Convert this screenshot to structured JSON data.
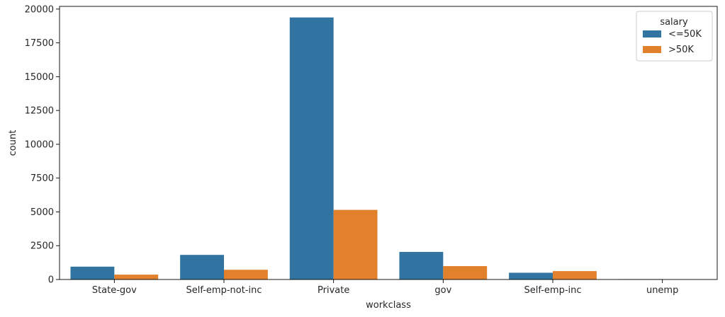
{
  "chart_data": {
    "type": "bar",
    "title": "",
    "xlabel": "workclass",
    "ylabel": "count",
    "categories": [
      " State-gov",
      " Self-emp-not-inc",
      " Private",
      "gov",
      " Self-emp-inc",
      "unemp"
    ],
    "series": [
      {
        "name": " <=50K",
        "color": "#3274a1",
        "values": [
          950,
          1820,
          19380,
          2040,
          500,
          30
        ]
      },
      {
        "name": " >50K",
        "color": "#e1812c",
        "values": [
          360,
          720,
          5150,
          990,
          620,
          10
        ]
      }
    ],
    "ylim": [
      0,
      20200
    ],
    "yticks": [
      0,
      2500,
      5000,
      7500,
      10000,
      12500,
      15000,
      17500,
      20000
    ],
    "legend": {
      "title": "salary",
      "placement": "top-right"
    },
    "grid": false
  }
}
